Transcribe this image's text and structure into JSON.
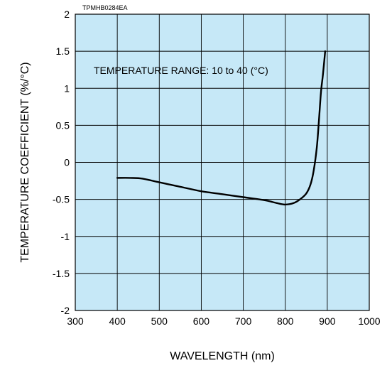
{
  "chart_data": {
    "type": "line",
    "figure_code": "TPMHB0284EA",
    "xlabel": "WAVELENGTH (nm)",
    "ylabel": "TEMPERATURE COEFFICIENT (%/°C)",
    "annotation": "TEMPERATURE RANGE: 10 to 40 (°C)",
    "xlim": [
      300,
      1000
    ],
    "ylim": [
      -2,
      2
    ],
    "x_ticks": [
      "300",
      "400",
      "500",
      "600",
      "700",
      "800",
      "900",
      "1000"
    ],
    "y_ticks": [
      "2",
      "1.5",
      "1",
      "0.5",
      "0",
      "-0.5",
      "-1",
      "-1.5",
      "-2"
    ],
    "grid": true,
    "plot_background": "#c6e8f7",
    "line_color": "#000000",
    "series": [
      {
        "x": [
          400,
          430,
          460,
          500,
          550,
          600,
          650,
          700,
          750,
          780,
          800,
          820,
          835,
          850,
          860,
          868,
          875,
          880,
          885,
          890,
          895
        ],
        "y": [
          -0.21,
          -0.21,
          -0.22,
          -0.27,
          -0.33,
          -0.39,
          -0.43,
          -0.47,
          -0.51,
          -0.55,
          -0.57,
          -0.55,
          -0.5,
          -0.42,
          -0.3,
          -0.1,
          0.2,
          0.55,
          0.95,
          1.2,
          1.5
        ]
      }
    ]
  }
}
